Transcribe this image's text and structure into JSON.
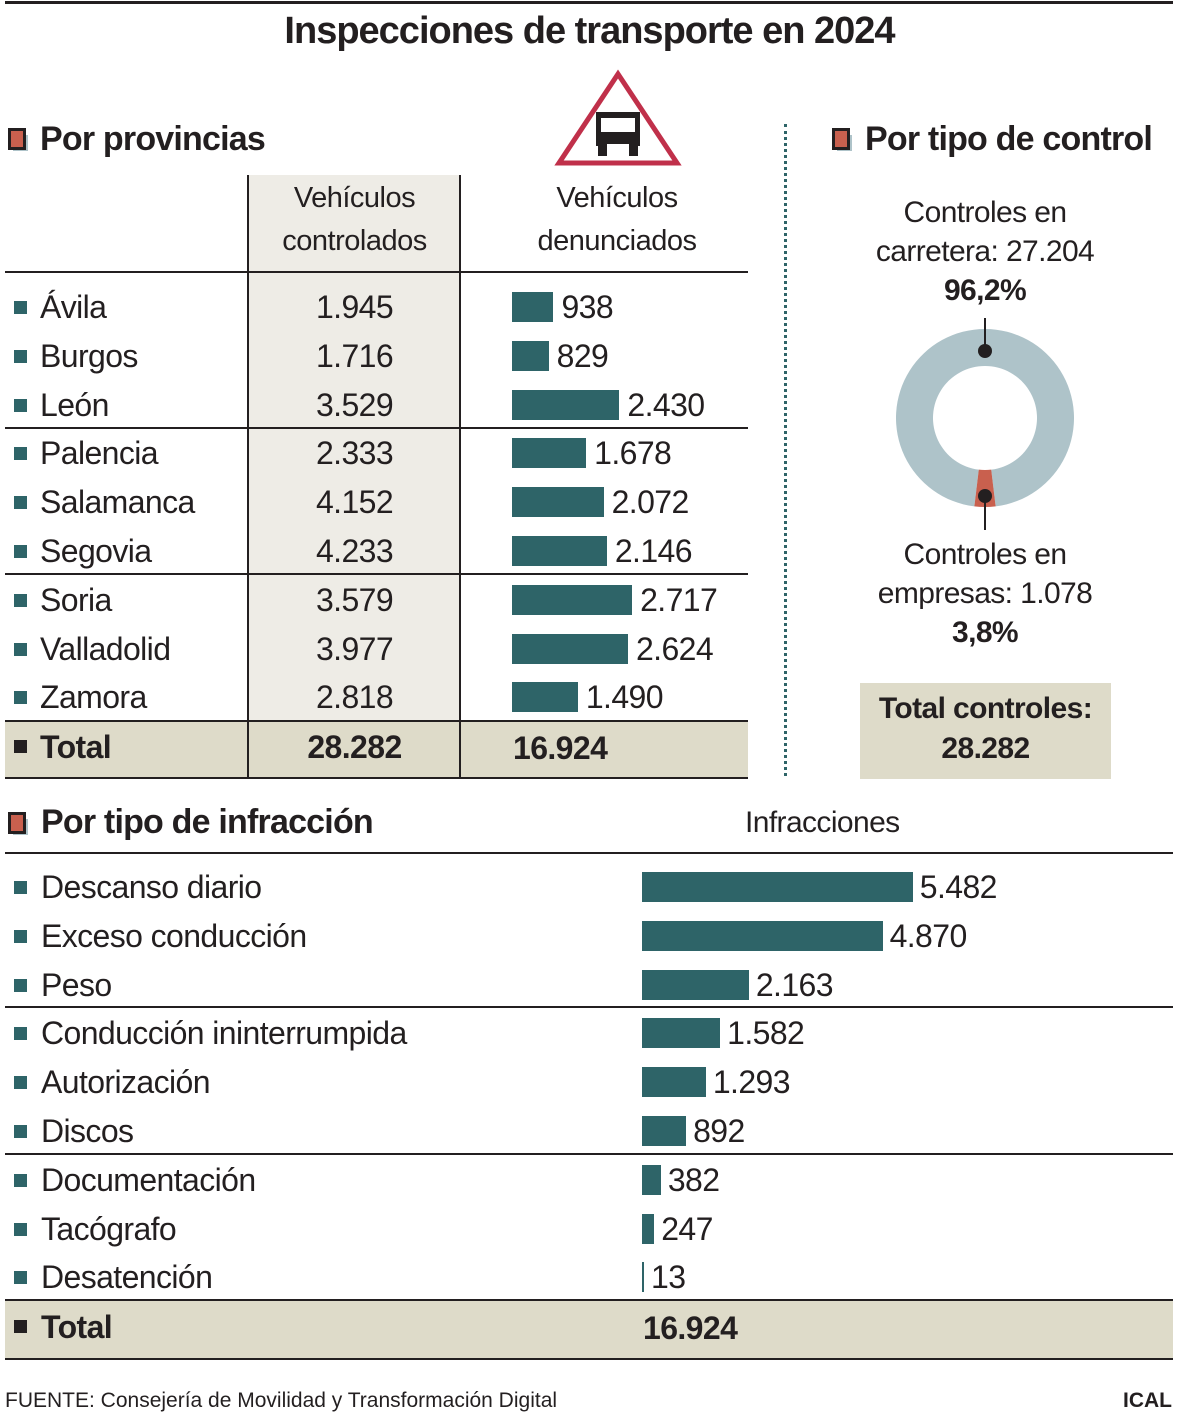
{
  "title": "Inspecciones de transporte en 2024",
  "provinces": {
    "section_title": "Por provincias",
    "icon": "truck-warning-triangle-icon",
    "col_controlled": [
      "Vehículos",
      "controlados"
    ],
    "col_reported": [
      "Vehículos",
      "denunciados"
    ],
    "rows": [
      {
        "name": "Ávila",
        "controlled": "1.945",
        "reported": "938",
        "reported_value": 938
      },
      {
        "name": "Burgos",
        "controlled": "1.716",
        "reported": "829",
        "reported_value": 829
      },
      {
        "name": "León",
        "controlled": "3.529",
        "reported": "2.430",
        "reported_value": 2430
      },
      {
        "name": "Palencia",
        "controlled": "2.333",
        "reported": "1.678",
        "reported_value": 1678
      },
      {
        "name": "Salamanca",
        "controlled": "4.152",
        "reported": "2.072",
        "reported_value": 2072
      },
      {
        "name": "Segovia",
        "controlled": "4.233",
        "reported": "2.146",
        "reported_value": 2146
      },
      {
        "name": "Soria",
        "controlled": "3.579",
        "reported": "2.717",
        "reported_value": 2717
      },
      {
        "name": "Valladolid",
        "controlled": "3.977",
        "reported": "2.624",
        "reported_value": 2624
      },
      {
        "name": "Zamora",
        "controlled": "2.818",
        "reported": "1.490",
        "reported_value": 1490
      }
    ],
    "total": {
      "label": "Total",
      "controlled": "28.282",
      "reported": "16.924"
    }
  },
  "control_type": {
    "section_title": "Por tipo de control",
    "road": {
      "label": [
        "Controles en",
        "carretera: 27.204"
      ],
      "pct": "96,2%",
      "value": 27204
    },
    "company": {
      "label": [
        "Controles en",
        "empresas: 1.078"
      ],
      "pct": "3,8%",
      "value": 1078
    },
    "total": [
      "Total controles:",
      "28.282"
    ]
  },
  "infractions": {
    "section_title": "Por tipo de infracción",
    "col_header": "Infracciones",
    "rows": [
      {
        "name": "Descanso diario",
        "label": "5.482",
        "value": 5482
      },
      {
        "name": "Exceso conducción",
        "label": "4.870",
        "value": 4870
      },
      {
        "name": "Peso",
        "label": "2.163",
        "value": 2163
      },
      {
        "name": "Conducción ininterrumpida",
        "label": "1.582",
        "value": 1582
      },
      {
        "name": "Autorización",
        "label": "1.293",
        "value": 1293
      },
      {
        "name": "Discos",
        "label": "892",
        "value": 892
      },
      {
        "name": "Documentación",
        "label": "382",
        "value": 382
      },
      {
        "name": "Tacógrafo",
        "label": "247",
        "value": 247
      },
      {
        "name": "Desatención",
        "label": "13",
        "value": 13
      }
    ],
    "total": {
      "label": "Total",
      "value": "16.924"
    }
  },
  "footer": {
    "source": "FUENTE: Consejería de Movilidad y Transformación Digital",
    "brand": "ICAL"
  },
  "colors": {
    "bar": "#2e6468",
    "road": "#aec3c9",
    "company": "#c9604e",
    "total_band": "#dedbc9",
    "shaded_column": "#eeece6",
    "triangle": "#c0304a"
  },
  "chart_data": [
    {
      "type": "table",
      "title": "Por provincias",
      "columns": [
        "",
        "Vehículos controlados",
        "Vehículos denunciados"
      ],
      "categories": [
        "Ávila",
        "Burgos",
        "León",
        "Palencia",
        "Salamanca",
        "Segovia",
        "Soria",
        "Valladolid",
        "Zamora"
      ],
      "series": [
        {
          "name": "Vehículos controlados",
          "values": [
            1945,
            1716,
            3529,
            2333,
            4152,
            4233,
            3579,
            3977,
            2818
          ]
        },
        {
          "name": "Vehículos denunciados",
          "values": [
            938,
            829,
            2430,
            1678,
            2072,
            2146,
            2717,
            2624,
            1490
          ]
        }
      ],
      "total": {
        "Vehículos controlados": 28282,
        "Vehículos denunciados": 16924
      }
    },
    {
      "type": "pie",
      "title": "Por tipo de control",
      "categories": [
        "Controles en carretera",
        "Controles en empresas"
      ],
      "values": [
        27204,
        1078
      ],
      "percent": [
        96.2,
        3.8
      ]
    },
    {
      "type": "bar",
      "title": "Por tipo de infracción",
      "ylabel": "Infracciones",
      "categories": [
        "Descanso diario",
        "Exceso conducción",
        "Peso",
        "Conducción ininterrumpida",
        "Autorización",
        "Discos",
        "Documentación",
        "Tacógrafo",
        "Desatención"
      ],
      "values": [
        5482,
        4870,
        2163,
        1582,
        1293,
        892,
        382,
        247,
        13
      ],
      "total": 16924
    }
  ]
}
